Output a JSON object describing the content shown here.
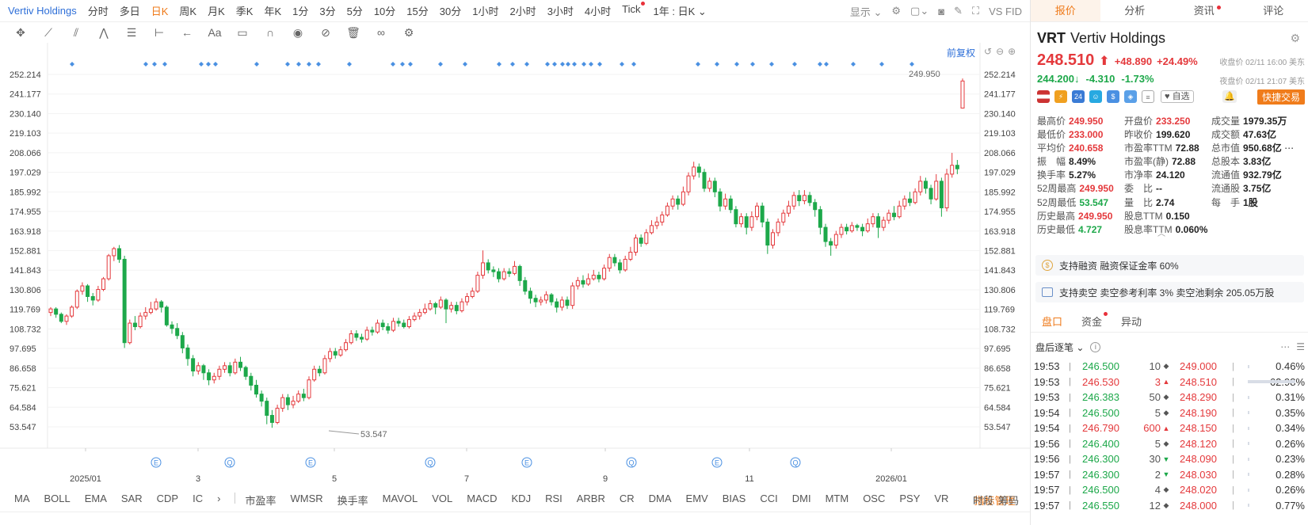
{
  "toolbar": {
    "symbol_title": "Vertiv Holdings",
    "periods": [
      "分时",
      "多日",
      "日K",
      "周K",
      "月K",
      "季K",
      "年K",
      "1分",
      "3分",
      "5分",
      "10分",
      "15分",
      "30分",
      "1小时",
      "2小时",
      "3小时",
      "4小时",
      "Tick"
    ],
    "active_period": "日K",
    "period_select": "1年 : 日K",
    "display_label": "显示",
    "right_text": "VS FID"
  },
  "chart_controls": {
    "restore_label": "前复权"
  },
  "chart_data": {
    "type": "candlestick",
    "y_ticks": [
      "252.214",
      "241.177",
      "230.140",
      "219.103",
      "208.066",
      "197.029",
      "185.992",
      "174.955",
      "163.918",
      "152.881",
      "141.843",
      "130.806",
      "119.769",
      "108.732",
      "97.695",
      "86.658",
      "75.621",
      "64.584",
      "53.547"
    ],
    "ylim": [
      53.547,
      252.214
    ],
    "x_labels": [
      "2025/01",
      "3",
      "5",
      "7",
      "9",
      "11",
      "2026/01"
    ],
    "high_label": "249.950",
    "low_label": "53.547",
    "event_markers": [
      "E",
      "Q",
      "E",
      "Q",
      "E",
      "Q",
      "E",
      "Q"
    ],
    "candles": [
      [
        118,
        120,
        116,
        121
      ],
      [
        120,
        117,
        115,
        121
      ],
      [
        117,
        113,
        112,
        118
      ],
      [
        113,
        116,
        111,
        117
      ],
      [
        116,
        121,
        115,
        122
      ],
      [
        121,
        130,
        120,
        131
      ],
      [
        130,
        133,
        128,
        135
      ],
      [
        133,
        127,
        124,
        134
      ],
      [
        127,
        125,
        122,
        129
      ],
      [
        125,
        131,
        124,
        133
      ],
      [
        131,
        137,
        130,
        138
      ],
      [
        137,
        150,
        136,
        151
      ],
      [
        150,
        154,
        147,
        155
      ],
      [
        154,
        148,
        146,
        156
      ],
      [
        148,
        101,
        98,
        150
      ],
      [
        101,
        112,
        100,
        114
      ],
      [
        112,
        110,
        108,
        116
      ],
      [
        110,
        116,
        109,
        118
      ],
      [
        116,
        118,
        114,
        121
      ],
      [
        118,
        120,
        117,
        124
      ],
      [
        120,
        124,
        119,
        126
      ],
      [
        124,
        121,
        118,
        125
      ],
      [
        121,
        111,
        110,
        122
      ],
      [
        111,
        109,
        106,
        113
      ],
      [
        109,
        105,
        103,
        112
      ],
      [
        105,
        98,
        95,
        107
      ],
      [
        98,
        92,
        88,
        100
      ],
      [
        92,
        85,
        82,
        94
      ],
      [
        85,
        88,
        83,
        90
      ],
      [
        88,
        84,
        80,
        89
      ],
      [
        84,
        80,
        77,
        86
      ],
      [
        80,
        82,
        78,
        84
      ],
      [
        82,
        86,
        80,
        88
      ],
      [
        86,
        88,
        84,
        90
      ],
      [
        88,
        84,
        82,
        90
      ],
      [
        84,
        90,
        83,
        92
      ],
      [
        90,
        87,
        85,
        93
      ],
      [
        87,
        82,
        80,
        88
      ],
      [
        82,
        77,
        74,
        84
      ],
      [
        77,
        72,
        70,
        80
      ],
      [
        72,
        68,
        65,
        74
      ],
      [
        68,
        60,
        55,
        70
      ],
      [
        60,
        56,
        53,
        63
      ],
      [
        56,
        64,
        55,
        66
      ],
      [
        64,
        70,
        62,
        72
      ],
      [
        70,
        66,
        63,
        72
      ],
      [
        66,
        68,
        64,
        71
      ],
      [
        68,
        72,
        67,
        74
      ],
      [
        72,
        70,
        68,
        75
      ],
      [
        70,
        80,
        69,
        82
      ],
      [
        80,
        86,
        79,
        88
      ],
      [
        86,
        84,
        82,
        88
      ],
      [
        84,
        92,
        83,
        94
      ],
      [
        92,
        96,
        90,
        98
      ],
      [
        96,
        94,
        92,
        98
      ],
      [
        94,
        97,
        93,
        99
      ],
      [
        97,
        101,
        96,
        103
      ],
      [
        101,
        106,
        100,
        108
      ],
      [
        106,
        104,
        102,
        108
      ],
      [
        104,
        103,
        101,
        106
      ],
      [
        103,
        108,
        102,
        110
      ],
      [
        108,
        107,
        105,
        110
      ],
      [
        107,
        112,
        106,
        114
      ],
      [
        112,
        110,
        108,
        114
      ],
      [
        110,
        108,
        106,
        112
      ],
      [
        108,
        113,
        107,
        115
      ],
      [
        113,
        112,
        110,
        115
      ],
      [
        112,
        110,
        109,
        114
      ],
      [
        110,
        114,
        109,
        116
      ],
      [
        114,
        116,
        113,
        118
      ],
      [
        116,
        118,
        114,
        120
      ],
      [
        118,
        120,
        117,
        123
      ],
      [
        120,
        123,
        119,
        125
      ],
      [
        123,
        121,
        117,
        124
      ],
      [
        121,
        125,
        120,
        127
      ],
      [
        125,
        120,
        112,
        126
      ],
      [
        120,
        122,
        118,
        124
      ],
      [
        122,
        119,
        117,
        124
      ],
      [
        119,
        124,
        118,
        126
      ],
      [
        124,
        127,
        122,
        129
      ],
      [
        127,
        130,
        126,
        132
      ],
      [
        130,
        139,
        129,
        141
      ],
      [
        139,
        146,
        137,
        153
      ],
      [
        146,
        142,
        140,
        148
      ],
      [
        142,
        141,
        138,
        144
      ],
      [
        141,
        137,
        135,
        143
      ],
      [
        137,
        141,
        136,
        143
      ],
      [
        141,
        140,
        138,
        143
      ],
      [
        140,
        144,
        139,
        147
      ],
      [
        144,
        136,
        133,
        145
      ],
      [
        136,
        130,
        128,
        138
      ],
      [
        130,
        126,
        123,
        132
      ],
      [
        126,
        124,
        121,
        128
      ],
      [
        124,
        125,
        122,
        127
      ],
      [
        125,
        128,
        123,
        130
      ],
      [
        128,
        124,
        122,
        129
      ],
      [
        124,
        121,
        118,
        126
      ],
      [
        121,
        125,
        119,
        127
      ],
      [
        125,
        122,
        120,
        127
      ],
      [
        122,
        133,
        120,
        135
      ],
      [
        133,
        136,
        131,
        138
      ],
      [
        136,
        134,
        132,
        139
      ],
      [
        134,
        137,
        133,
        140
      ],
      [
        137,
        139,
        136,
        142
      ],
      [
        139,
        137,
        135,
        141
      ],
      [
        137,
        143,
        136,
        145
      ],
      [
        143,
        149,
        141,
        151
      ],
      [
        149,
        146,
        144,
        151
      ],
      [
        146,
        142,
        140,
        148
      ],
      [
        142,
        148,
        141,
        150
      ],
      [
        148,
        152,
        147,
        155
      ],
      [
        152,
        160,
        150,
        162
      ],
      [
        160,
        157,
        155,
        162
      ],
      [
        157,
        163,
        156,
        165
      ],
      [
        163,
        167,
        162,
        170
      ],
      [
        167,
        169,
        165,
        172
      ],
      [
        169,
        173,
        167,
        175
      ],
      [
        173,
        178,
        172,
        180
      ],
      [
        178,
        182,
        176,
        184
      ],
      [
        182,
        179,
        176,
        184
      ],
      [
        179,
        186,
        178,
        189
      ],
      [
        186,
        195,
        184,
        197
      ],
      [
        195,
        200,
        193,
        203
      ],
      [
        200,
        197,
        194,
        202
      ],
      [
        197,
        188,
        186,
        199
      ],
      [
        188,
        192,
        186,
        194
      ],
      [
        192,
        186,
        183,
        194
      ],
      [
        186,
        178,
        175,
        188
      ],
      [
        178,
        182,
        176,
        185
      ],
      [
        182,
        176,
        174,
        184
      ],
      [
        176,
        168,
        166,
        178
      ],
      [
        168,
        172,
        166,
        174
      ],
      [
        172,
        166,
        162,
        174
      ],
      [
        166,
        172,
        164,
        175
      ],
      [
        172,
        178,
        170,
        180
      ],
      [
        178,
        169,
        166,
        180
      ],
      [
        169,
        156,
        151,
        171
      ],
      [
        156,
        163,
        154,
        165
      ],
      [
        163,
        169,
        161,
        171
      ],
      [
        169,
        174,
        167,
        176
      ],
      [
        174,
        178,
        172,
        181
      ],
      [
        178,
        184,
        176,
        186
      ],
      [
        184,
        181,
        178,
        187
      ],
      [
        181,
        184,
        179,
        187
      ],
      [
        184,
        180,
        178,
        186
      ],
      [
        180,
        176,
        172,
        182
      ],
      [
        176,
        166,
        162,
        178
      ],
      [
        166,
        158,
        155,
        168
      ],
      [
        158,
        156,
        150,
        160
      ],
      [
        156,
        162,
        154,
        164
      ],
      [
        162,
        166,
        160,
        168
      ],
      [
        166,
        164,
        162,
        168
      ],
      [
        164,
        167,
        163,
        169
      ],
      [
        167,
        166,
        164,
        168
      ],
      [
        166,
        164,
        161,
        168
      ],
      [
        164,
        168,
        163,
        171
      ],
      [
        168,
        172,
        166,
        174
      ],
      [
        172,
        166,
        160,
        174
      ],
      [
        166,
        170,
        164,
        172
      ],
      [
        170,
        174,
        168,
        176
      ],
      [
        174,
        172,
        170,
        178
      ],
      [
        172,
        178,
        171,
        181
      ],
      [
        178,
        182,
        176,
        184
      ],
      [
        182,
        180,
        178,
        186
      ],
      [
        180,
        186,
        179,
        188
      ],
      [
        186,
        192,
        184,
        195
      ],
      [
        192,
        188,
        185,
        194
      ],
      [
        188,
        182,
        179,
        190
      ],
      [
        182,
        192,
        181,
        196
      ],
      [
        192,
        177,
        172,
        194
      ],
      [
        177,
        196,
        175,
        199
      ],
      [
        196,
        201,
        194,
        208
      ],
      [
        201,
        199,
        196,
        204
      ]
    ],
    "last_candle": [
      233.25,
      248.51,
      233.0,
      249.95
    ]
  },
  "indicators": {
    "items": [
      "MA",
      "BOLL",
      "EMA",
      "SAR",
      "CDP",
      "IC",
      "市盈率",
      "WMSR",
      "换手率",
      "MAVOL",
      "VOL",
      "MACD",
      "KDJ",
      "RSI",
      "ARBR",
      "CR",
      "DMA",
      "EMV",
      "BIAS",
      "CCI",
      "DMI",
      "MTM",
      "OSC",
      "PSY",
      "VR"
    ],
    "manage_label": "指标管理",
    "right_labels": [
      "时段",
      "筹码"
    ]
  },
  "panel": {
    "tabs": [
      "报价",
      "分析",
      "资讯",
      "评论"
    ],
    "active_tab": "报价",
    "ticker": "VRT",
    "name": "Vertiv Holdings",
    "last_price": "248.510",
    "arrow": "⬆",
    "change": "+48.890",
    "change_pct": "+24.49%",
    "close_time": "收盘价 02/11 16:00 美东",
    "after_hours_price": "244.200↓",
    "after_hours_change": "-4.310",
    "after_hours_pct": "-1.73%",
    "after_hours_time": "夜盘价 02/11 21:07 美东",
    "watch_label": "♥ 自选",
    "quick_trade_label": "快捷交易",
    "stats": [
      [
        {
          "l": "最高价",
          "v": "249.950",
          "c": "up"
        },
        {
          "l": "开盘价",
          "v": "233.250",
          "c": "up"
        },
        {
          "l": "成交量",
          "v": "1979.35万",
          "c": ""
        }
      ],
      [
        {
          "l": "最低价",
          "v": "233.000",
          "c": "up"
        },
        {
          "l": "昨收价",
          "v": "199.620",
          "c": ""
        },
        {
          "l": "成交额",
          "v": "47.63亿",
          "c": ""
        }
      ],
      [
        {
          "l": "平均价",
          "v": "240.658",
          "c": "up"
        },
        {
          "l": "市盈率TTM",
          "v": "72.88",
          "c": ""
        },
        {
          "l": "总市值",
          "v": "950.68亿",
          "c": ""
        }
      ],
      [
        {
          "l": "振　幅",
          "v": "8.49%",
          "c": ""
        },
        {
          "l": "市盈率(静)",
          "v": "72.88",
          "c": ""
        },
        {
          "l": "总股本",
          "v": "3.83亿",
          "c": ""
        }
      ],
      [
        {
          "l": "换手率",
          "v": "5.27%",
          "c": ""
        },
        {
          "l": "市净率",
          "v": "24.120",
          "c": ""
        },
        {
          "l": "流通值",
          "v": "932.79亿",
          "c": ""
        }
      ],
      [
        {
          "l": "52周最高",
          "v": "249.950",
          "c": "up"
        },
        {
          "l": "委　比",
          "v": "--",
          "c": ""
        },
        {
          "l": "流通股",
          "v": "3.75亿",
          "c": ""
        }
      ],
      [
        {
          "l": "52周最低",
          "v": "53.547",
          "c": "dn"
        },
        {
          "l": "量　比",
          "v": "2.74",
          "c": ""
        },
        {
          "l": "每　手",
          "v": "1股",
          "c": ""
        }
      ],
      [
        {
          "l": "历史最高",
          "v": "249.950",
          "c": "up"
        },
        {
          "l": "股息TTM",
          "v": "0.150",
          "c": ""
        },
        {
          "l": "",
          "v": "",
          "c": ""
        }
      ],
      [
        {
          "l": "历史最低",
          "v": "4.727",
          "c": "dn"
        },
        {
          "l": "股息率TTM",
          "v": "0.060%",
          "c": ""
        },
        {
          "l": "",
          "v": "",
          "c": ""
        }
      ]
    ],
    "banner1": "支持融资 融资保证金率 60%",
    "banner2": "支持卖空 卖空参考利率 3% 卖空池剩余 205.05万股",
    "subtabs": [
      "盘口",
      "资金",
      "异动"
    ],
    "ticks_title": "盘后逐笔",
    "ticks": [
      {
        "t": "19:53",
        "p": "246.500",
        "v": "10",
        "d": "◆",
        "c": "flat"
      },
      {
        "t": "19:53",
        "p": "246.530",
        "v": "3",
        "d": "▲",
        "c": "up"
      },
      {
        "t": "19:53",
        "p": "246.383",
        "v": "50",
        "d": "◆",
        "c": "flat"
      },
      {
        "t": "19:54",
        "p": "246.500",
        "v": "5",
        "d": "◆",
        "c": "flat"
      },
      {
        "t": "19:54",
        "p": "246.790",
        "v": "600",
        "d": "▲",
        "c": "up"
      },
      {
        "t": "19:56",
        "p": "246.400",
        "v": "5",
        "d": "◆",
        "c": "flat"
      },
      {
        "t": "19:56",
        "p": "246.300",
        "v": "30",
        "d": "▼",
        "c": "dn"
      },
      {
        "t": "19:57",
        "p": "246.300",
        "v": "2",
        "d": "▼",
        "c": "dn"
      },
      {
        "t": "19:57",
        "p": "246.500",
        "v": "4",
        "d": "◆",
        "c": "flat"
      },
      {
        "t": "19:57",
        "p": "246.550",
        "v": "12",
        "d": "◆",
        "c": "flat"
      }
    ],
    "book": [
      {
        "p": "249.000",
        "pct": "0.46%",
        "w": 0.46
      },
      {
        "p": "248.510",
        "pct": "62.98%",
        "w": 62.98
      },
      {
        "p": "248.290",
        "pct": "0.31%",
        "w": 0.31
      },
      {
        "p": "248.190",
        "pct": "0.35%",
        "w": 0.35
      },
      {
        "p": "248.150",
        "pct": "0.34%",
        "w": 0.34
      },
      {
        "p": "248.120",
        "pct": "0.26%",
        "w": 0.26
      },
      {
        "p": "248.090",
        "pct": "0.23%",
        "w": 0.23
      },
      {
        "p": "248.030",
        "pct": "0.28%",
        "w": 0.28
      },
      {
        "p": "248.020",
        "pct": "0.26%",
        "w": 0.26
      },
      {
        "p": "248.000",
        "pct": "0.77%",
        "w": 0.77
      }
    ]
  },
  "colors": {
    "up": "#e4393c",
    "down": "#1da84a",
    "accent": "#ef7a1a",
    "link": "#2e6fd8"
  }
}
